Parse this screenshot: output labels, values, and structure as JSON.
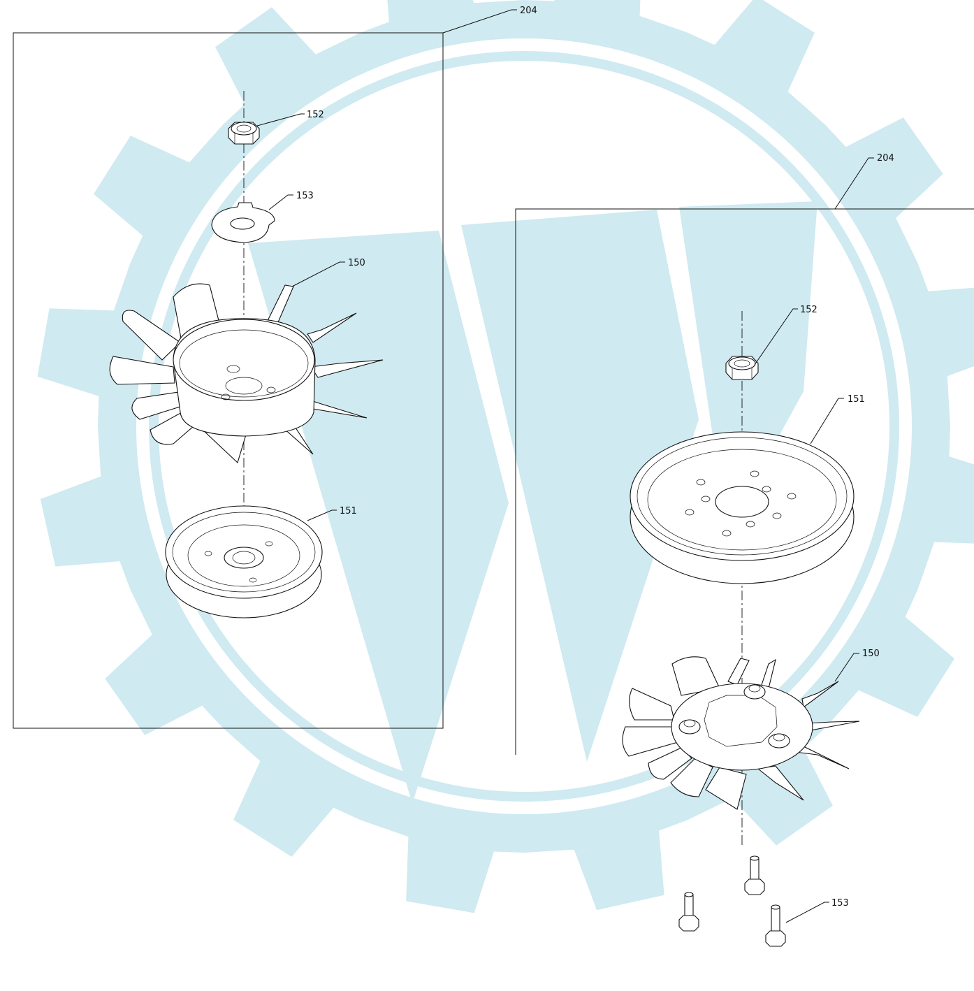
{
  "colors": {
    "watermark": "#cfeaf1",
    "line": "#111111"
  },
  "watermark": {
    "name": "gear-and-w-logo"
  },
  "left_view": {
    "frame_callout": "204",
    "callouts": {
      "nut": "152",
      "washer": "153",
      "fan": "150",
      "pulley": "151"
    }
  },
  "right_view": {
    "frame_callout": "204",
    "callouts": {
      "nut": "152",
      "pulley": "151",
      "fan": "150",
      "bolts": "153"
    }
  }
}
